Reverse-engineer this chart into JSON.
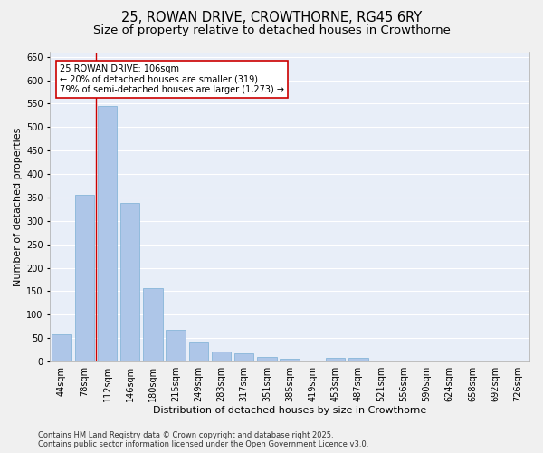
{
  "title_line1": "25, ROWAN DRIVE, CROWTHORNE, RG45 6RY",
  "title_line2": "Size of property relative to detached houses in Crowthorne",
  "xlabel": "Distribution of detached houses by size in Crowthorne",
  "ylabel": "Number of detached properties",
  "categories": [
    "44sqm",
    "78sqm",
    "112sqm",
    "146sqm",
    "180sqm",
    "215sqm",
    "249sqm",
    "283sqm",
    "317sqm",
    "351sqm",
    "385sqm",
    "419sqm",
    "453sqm",
    "487sqm",
    "521sqm",
    "556sqm",
    "590sqm",
    "624sqm",
    "658sqm",
    "692sqm",
    "726sqm"
  ],
  "values": [
    58,
    355,
    545,
    338,
    157,
    67,
    40,
    22,
    18,
    10,
    6,
    0,
    8,
    8,
    0,
    0,
    3,
    0,
    2,
    0,
    3
  ],
  "bar_color": "#aec6e8",
  "bar_edge_color": "#7aaed4",
  "vline_x_data": 1.5,
  "vline_color": "#cc0000",
  "annotation_text": "25 ROWAN DRIVE: 106sqm\n← 20% of detached houses are smaller (319)\n79% of semi-detached houses are larger (1,273) →",
  "annotation_box_color": "#ffffff",
  "annotation_box_edge": "#cc0000",
  "ylim": [
    0,
    660
  ],
  "yticks": [
    0,
    50,
    100,
    150,
    200,
    250,
    300,
    350,
    400,
    450,
    500,
    550,
    600,
    650
  ],
  "fig_bg": "#f0f0f0",
  "plot_bg": "#e8eef8",
  "grid_color": "#ffffff",
  "footer_line1": "Contains HM Land Registry data © Crown copyright and database right 2025.",
  "footer_line2": "Contains public sector information licensed under the Open Government Licence v3.0.",
  "title_fontsize": 10.5,
  "subtitle_fontsize": 9.5,
  "label_fontsize": 8,
  "tick_fontsize": 7,
  "footer_fontsize": 6
}
